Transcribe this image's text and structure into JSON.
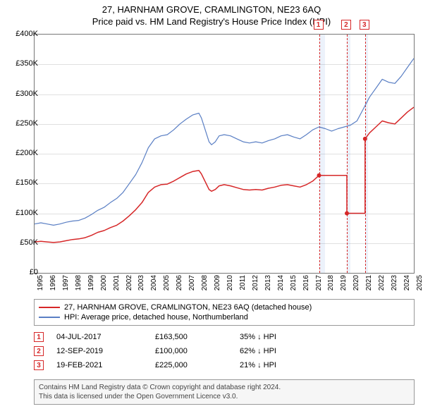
{
  "title_line1": "27, HARNHAM GROVE, CRAMLINGTON, NE23 6AQ",
  "title_line2": "Price paid vs. HM Land Registry's House Price Index (HPI)",
  "chart": {
    "type": "line",
    "xlim": [
      1995,
      2025
    ],
    "ylim": [
      0,
      400000
    ],
    "ytick_step": 50000,
    "y_tick_labels": [
      "£0",
      "£50K",
      "£100K",
      "£150K",
      "£200K",
      "£250K",
      "£300K",
      "£350K",
      "£400K"
    ],
    "x_years": [
      1995,
      1996,
      1997,
      1998,
      1999,
      2000,
      2001,
      2002,
      2003,
      2004,
      2005,
      2006,
      2007,
      2008,
      2009,
      2010,
      2011,
      2012,
      2013,
      2014,
      2015,
      2016,
      2017,
      2018,
      2019,
      2020,
      2021,
      2022,
      2023,
      2024,
      2025
    ],
    "background_color": "#ffffff",
    "grid_color": "#e0e0e0",
    "axis_color": "#777777",
    "label_fontsize": 11,
    "hpi_series": {
      "color": "#5a7fc4",
      "line_width": 1.2,
      "label": "HPI: Average price, detached house, Northumberland",
      "points": [
        [
          1995,
          82000
        ],
        [
          1995.5,
          84000
        ],
        [
          1996,
          82000
        ],
        [
          1996.5,
          80000
        ],
        [
          1997,
          82000
        ],
        [
          1997.5,
          85000
        ],
        [
          1998,
          87000
        ],
        [
          1998.5,
          88000
        ],
        [
          1999,
          92000
        ],
        [
          1999.5,
          98000
        ],
        [
          2000,
          105000
        ],
        [
          2000.5,
          110000
        ],
        [
          2001,
          118000
        ],
        [
          2001.5,
          125000
        ],
        [
          2002,
          135000
        ],
        [
          2002.5,
          150000
        ],
        [
          2003,
          165000
        ],
        [
          2003.5,
          185000
        ],
        [
          2004,
          210000
        ],
        [
          2004.5,
          225000
        ],
        [
          2005,
          230000
        ],
        [
          2005.5,
          232000
        ],
        [
          2006,
          240000
        ],
        [
          2006.5,
          250000
        ],
        [
          2007,
          258000
        ],
        [
          2007.5,
          265000
        ],
        [
          2008,
          268000
        ],
        [
          2008.2,
          260000
        ],
        [
          2008.5,
          240000
        ],
        [
          2008.8,
          220000
        ],
        [
          2009,
          215000
        ],
        [
          2009.3,
          220000
        ],
        [
          2009.6,
          230000
        ],
        [
          2010,
          232000
        ],
        [
          2010.5,
          230000
        ],
        [
          2011,
          225000
        ],
        [
          2011.5,
          220000
        ],
        [
          2012,
          218000
        ],
        [
          2012.5,
          220000
        ],
        [
          2013,
          218000
        ],
        [
          2013.5,
          222000
        ],
        [
          2014,
          225000
        ],
        [
          2014.5,
          230000
        ],
        [
          2015,
          232000
        ],
        [
          2015.5,
          228000
        ],
        [
          2016,
          225000
        ],
        [
          2016.5,
          232000
        ],
        [
          2017,
          240000
        ],
        [
          2017.5,
          245000
        ],
        [
          2018,
          242000
        ],
        [
          2018.5,
          238000
        ],
        [
          2019,
          242000
        ],
        [
          2019.5,
          245000
        ],
        [
          2020,
          248000
        ],
        [
          2020.5,
          255000
        ],
        [
          2021,
          275000
        ],
        [
          2021.5,
          295000
        ],
        [
          2022,
          310000
        ],
        [
          2022.5,
          325000
        ],
        [
          2023,
          320000
        ],
        [
          2023.5,
          318000
        ],
        [
          2024,
          330000
        ],
        [
          2024.5,
          345000
        ],
        [
          2025,
          360000
        ]
      ]
    },
    "property_series": {
      "color": "#d62728",
      "line_width": 1.5,
      "label": "27, HARNHAM GROVE, CRAMLINGTON, NE23 6AQ (detached house)",
      "points": [
        [
          1995,
          52000
        ],
        [
          1995.5,
          53000
        ],
        [
          1996,
          52000
        ],
        [
          1996.5,
          51000
        ],
        [
          1997,
          52000
        ],
        [
          1997.5,
          54000
        ],
        [
          1998,
          56000
        ],
        [
          1998.5,
          57000
        ],
        [
          1999,
          59000
        ],
        [
          1999.5,
          63000
        ],
        [
          2000,
          68000
        ],
        [
          2000.5,
          71000
        ],
        [
          2001,
          76000
        ],
        [
          2001.5,
          80000
        ],
        [
          2002,
          87000
        ],
        [
          2002.5,
          96000
        ],
        [
          2003,
          106000
        ],
        [
          2003.5,
          118000
        ],
        [
          2004,
          135000
        ],
        [
          2004.5,
          144000
        ],
        [
          2005,
          148000
        ],
        [
          2005.5,
          149000
        ],
        [
          2006,
          154000
        ],
        [
          2006.5,
          160000
        ],
        [
          2007,
          166000
        ],
        [
          2007.5,
          170000
        ],
        [
          2008,
          172000
        ],
        [
          2008.2,
          166000
        ],
        [
          2008.5,
          153000
        ],
        [
          2008.8,
          140000
        ],
        [
          2009,
          137000
        ],
        [
          2009.3,
          140000
        ],
        [
          2009.6,
          146000
        ],
        [
          2010,
          148000
        ],
        [
          2010.5,
          146000
        ],
        [
          2011,
          143000
        ],
        [
          2011.5,
          140000
        ],
        [
          2012,
          139000
        ],
        [
          2012.5,
          140000
        ],
        [
          2013,
          139000
        ],
        [
          2013.5,
          142000
        ],
        [
          2014,
          144000
        ],
        [
          2014.5,
          147000
        ],
        [
          2015,
          148000
        ],
        [
          2015.5,
          146000
        ],
        [
          2016,
          144000
        ],
        [
          2016.5,
          148000
        ],
        [
          2017,
          154000
        ],
        [
          2017.5,
          163500
        ]
      ],
      "step_points": [
        [
          2017.5,
          163500
        ],
        [
          2019.7,
          163500
        ],
        [
          2019.7,
          100000
        ],
        [
          2021.14,
          100000
        ],
        [
          2021.14,
          225000
        ]
      ],
      "post_points": [
        [
          2021.14,
          225000
        ],
        [
          2021.5,
          235000
        ],
        [
          2022,
          245000
        ],
        [
          2022.5,
          255000
        ],
        [
          2023,
          252000
        ],
        [
          2023.5,
          250000
        ],
        [
          2024,
          260000
        ],
        [
          2024.5,
          270000
        ],
        [
          2025,
          278000
        ]
      ],
      "dots": [
        [
          2017.5,
          163500
        ],
        [
          2019.7,
          100000
        ],
        [
          2021.14,
          225000
        ]
      ]
    },
    "markers": [
      {
        "n": "1",
        "x": 2017.5,
        "shade_to": 2018
      },
      {
        "n": "2",
        "x": 2019.7,
        "shade_to": 2020
      },
      {
        "n": "3",
        "x": 2021.14,
        "shade_to": 2021.4
      }
    ]
  },
  "legend": {
    "rows": [
      {
        "color": "#d62728",
        "label": "27, HARNHAM GROVE, CRAMLINGTON, NE23 6AQ (detached house)"
      },
      {
        "color": "#5a7fc4",
        "label": "HPI: Average price, detached house, Northumberland"
      }
    ]
  },
  "sales": [
    {
      "n": "1",
      "date": "04-JUL-2017",
      "price": "£163,500",
      "diff": "35% ↓ HPI"
    },
    {
      "n": "2",
      "date": "12-SEP-2019",
      "price": "£100,000",
      "diff": "62% ↓ HPI"
    },
    {
      "n": "3",
      "date": "19-FEB-2021",
      "price": "£225,000",
      "diff": "21% ↓ HPI"
    }
  ],
  "footer": {
    "line1": "Contains HM Land Registry data © Crown copyright and database right 2024.",
    "line2": "This data is licensed under the Open Government Licence v3.0."
  }
}
